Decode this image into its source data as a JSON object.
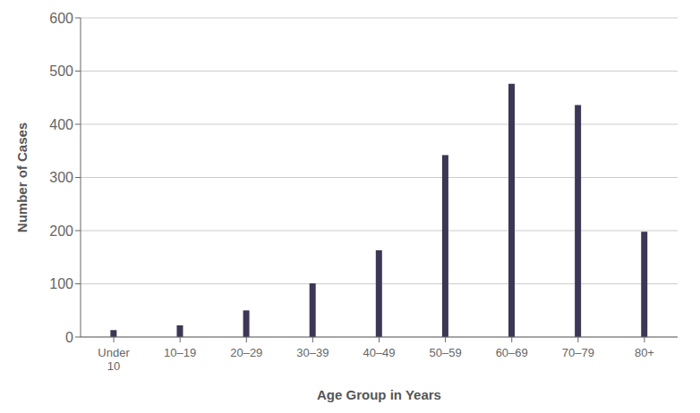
{
  "chart_data": {
    "type": "bar",
    "categories": [
      "Under\n10",
      "10–19",
      "20–29",
      "30–39",
      "40–49",
      "50–59",
      "60–69",
      "70–79",
      "80+"
    ],
    "values": [
      13,
      22,
      50,
      101,
      163,
      342,
      476,
      436,
      198
    ],
    "color": "#3d3655",
    "xlabel": "Age Group in Years",
    "ylabel": "Number of Cases",
    "ylim": [
      0,
      600
    ],
    "yticks": [
      0,
      100,
      200,
      300,
      400,
      500,
      600
    ],
    "grid": true
  }
}
